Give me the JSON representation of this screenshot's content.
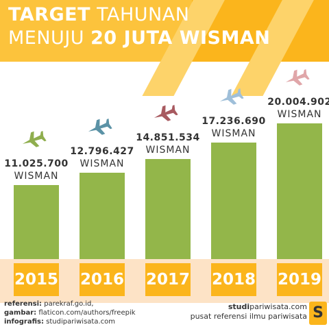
{
  "title": {
    "line1_bold": "TARGET",
    "line1_light": "TAHUNAN",
    "line2_light": "MENUJU",
    "line2_bold": "20 JUTA WISMAN"
  },
  "chart_data": {
    "type": "bar",
    "categories": [
      "2015",
      "2016",
      "2017",
      "2018",
      "2019"
    ],
    "values": [
      11025700,
      12796427,
      14851534,
      17236690,
      20004902
    ],
    "value_labels": [
      "11.025.700",
      "12.796.427",
      "14.851.534",
      "17.236.690",
      "20.004.902"
    ],
    "unit_label": "WISMAN",
    "ylim": [
      0,
      20004902
    ],
    "grid": false,
    "colors": {
      "bar": "#93b64a",
      "year_box": "#fbb51c"
    }
  },
  "planes": [
    "plane-icon",
    "plane-icon",
    "plane-icon",
    "plane-icon",
    "plane-icon"
  ],
  "plane_colors": [
    "#8fae4e",
    "#5b92a6",
    "#a85a60",
    "#9fbfd9",
    "#e0a6a9"
  ],
  "footer": {
    "ref_label": "referensi:",
    "ref_value": "parekraf.go.id,",
    "img_label": "gambar:",
    "img_value": "flaticon.com/authors/freepik",
    "info_label": "infografis:",
    "info_value": "studipariwisata.com",
    "brand_bold": "studi",
    "brand_rest": "pariwisata.com",
    "tagline": "pusat referensi ilmu pariwisata",
    "logo_letter": "S"
  }
}
